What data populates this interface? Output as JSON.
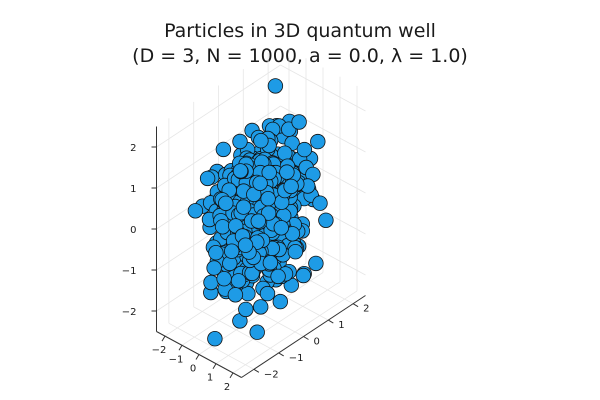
{
  "title_line1": "Particles in 3D quantum well",
  "title_line2": "(D = 3, N = 1000, a = 0.0, λ = 1.0)",
  "colors": {
    "marker": "#1e9be6",
    "marker_edge": "#111111",
    "axis": "#333333",
    "grid": "#e6e6e6"
  },
  "chart_data": {
    "type": "scatter",
    "dimensions": 3,
    "title": "Particles in 3D quantum well\n(D = 3, N = 1000, a = 0.0, λ = 1.0)",
    "xlabel": "",
    "ylabel": "",
    "zlabel": "",
    "xlim": [
      -2.5,
      2.5
    ],
    "ylim": [
      -2.5,
      2.5
    ],
    "zlim": [
      -2.5,
      2.5
    ],
    "x_ticks": [
      "−2",
      "−1",
      "0",
      "1",
      "2"
    ],
    "y_ticks": [
      "−2",
      "−1",
      "0",
      "1",
      "2"
    ],
    "z_ticks": [
      "−2",
      "−1",
      "0",
      "1",
      "2"
    ],
    "grid": true,
    "legend": "none",
    "n_points": 1000,
    "distribution": "approximately Gaussian, centered at origin, std ≈ 0.7"
  }
}
